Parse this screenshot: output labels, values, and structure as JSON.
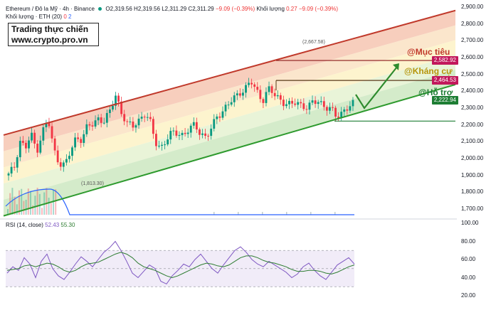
{
  "header": {
    "symbol": "Ethereum / Đô la Mỹ · 4h · Binance",
    "o_label": "O",
    "o_value": "2,319.56",
    "h_label": "H",
    "h_value": "2,319.56",
    "l_label": "L",
    "l_value": "2,311.29",
    "c_label": "C",
    "c_value": "2,311.29",
    "change": "−9.09 (−0.39%)",
    "volume_label": "Khối lượng",
    "volume_value": "0.27",
    "volume_change": "−9.09 (−0.39%)",
    "vol_ma_label": "Khối lượng · ETH (20)",
    "vol_ma_v1": "0",
    "vol_ma_v2": "2"
  },
  "watermark": {
    "line1": "Trading thực chiến",
    "line2": "www.crypto.pro.vn"
  },
  "annotations": {
    "target": "@Mục tiêu",
    "resistance": "@Kháng cự",
    "support": "@Hỗ trợ",
    "high_label": "(2,667.58)",
    "low_label": "(1,813.30)"
  },
  "price_tags": {
    "target": {
      "value": "2,582.92",
      "color": "#c2185b"
    },
    "resistance": {
      "value": "2,464.53",
      "color": "#c2185b"
    },
    "support": {
      "value": "2,222.94",
      "color": "#1e7e34"
    }
  },
  "rsi": {
    "label": "RSI (14, close)",
    "v1": "52.43",
    "v2": "55.30"
  },
  "colors": {
    "up": "#089981",
    "down": "#f23645",
    "channel_top": "#c0392b",
    "channel_bottom": "#2e9a2e",
    "rsi": "#7e57c2",
    "rsi_ma": "#2e7d32",
    "volume_ma": "#2962ff"
  },
  "chart_data": {
    "type": "candlestick",
    "price_axis": {
      "min": 1650,
      "max": 2900,
      "ticks": [
        "2,900.00",
        "2,800.00",
        "2,700.00",
        "2,600.00",
        "2,500.00",
        "2,400.00",
        "2,300.00",
        "2,200.00",
        "2,100.00",
        "2,000.00",
        "1,900.00",
        "1,800.00",
        "1,700.00"
      ]
    },
    "rsi_axis": {
      "min": 20,
      "max": 100,
      "ticks": [
        "100.00",
        "80.00",
        "60.00",
        "40.00",
        "20.00"
      ],
      "bands": [
        30,
        50,
        70
      ]
    },
    "levels": {
      "target": 2582.92,
      "resistance": 2464.53,
      "support": 2222.94,
      "high": 2667.58,
      "low": 1813.3
    },
    "channel": {
      "top": [
        [
          0,
          2140
        ],
        [
          1,
          2880
        ]
      ],
      "bottom": [
        [
          0,
          1660
        ],
        [
          1,
          2440
        ]
      ]
    },
    "close_path": [
      1900,
      1950,
      2110,
      2060,
      2140,
      2050,
      2160,
      2230,
      2050,
      1980,
      1960,
      2040,
      2130,
      2120,
      2190,
      2200,
      2250,
      2220,
      2280,
      2380,
      2280,
      2200,
      2190,
      2230,
      2270,
      2220,
      2100,
      2070,
      2110,
      2150,
      2160,
      2140,
      2170,
      2200,
      2160,
      2120,
      2180,
      2260,
      2290,
      2320,
      2360,
      2400,
      2420,
      2450,
      2400,
      2350,
      2410,
      2380,
      2360,
      2330,
      2310,
      2340,
      2320,
      2300,
      2330,
      2350,
      2310,
      2290,
      2250,
      2280,
      2300,
      2320
    ],
    "rsi_values": [
      45,
      52,
      48,
      62,
      55,
      40,
      58,
      66,
      50,
      42,
      38,
      46,
      55,
      63,
      58,
      52,
      60,
      68,
      73,
      80,
      70,
      58,
      45,
      40,
      47,
      54,
      50,
      36,
      33,
      42,
      48,
      55,
      52,
      60,
      66,
      58,
      50,
      45,
      54,
      62,
      70,
      74,
      68,
      60,
      55,
      52,
      58,
      54,
      50,
      46,
      40,
      44,
      52,
      56,
      48,
      42,
      38,
      46,
      54,
      58,
      62,
      55
    ],
    "rsi_ma_values": [
      48,
      49,
      50,
      53,
      54,
      52,
      54,
      56,
      55,
      52,
      48,
      46,
      48,
      52,
      55,
      56,
      57,
      60,
      63,
      66,
      68,
      66,
      62,
      56,
      52,
      50,
      48,
      45,
      42,
      40,
      42,
      45,
      48,
      51,
      54,
      56,
      55,
      53,
      52,
      54,
      58,
      62,
      64,
      64,
      62,
      59,
      57,
      56,
      54,
      52,
      49,
      47,
      47,
      48,
      48,
      47,
      45,
      44,
      46,
      49,
      52,
      54
    ]
  }
}
